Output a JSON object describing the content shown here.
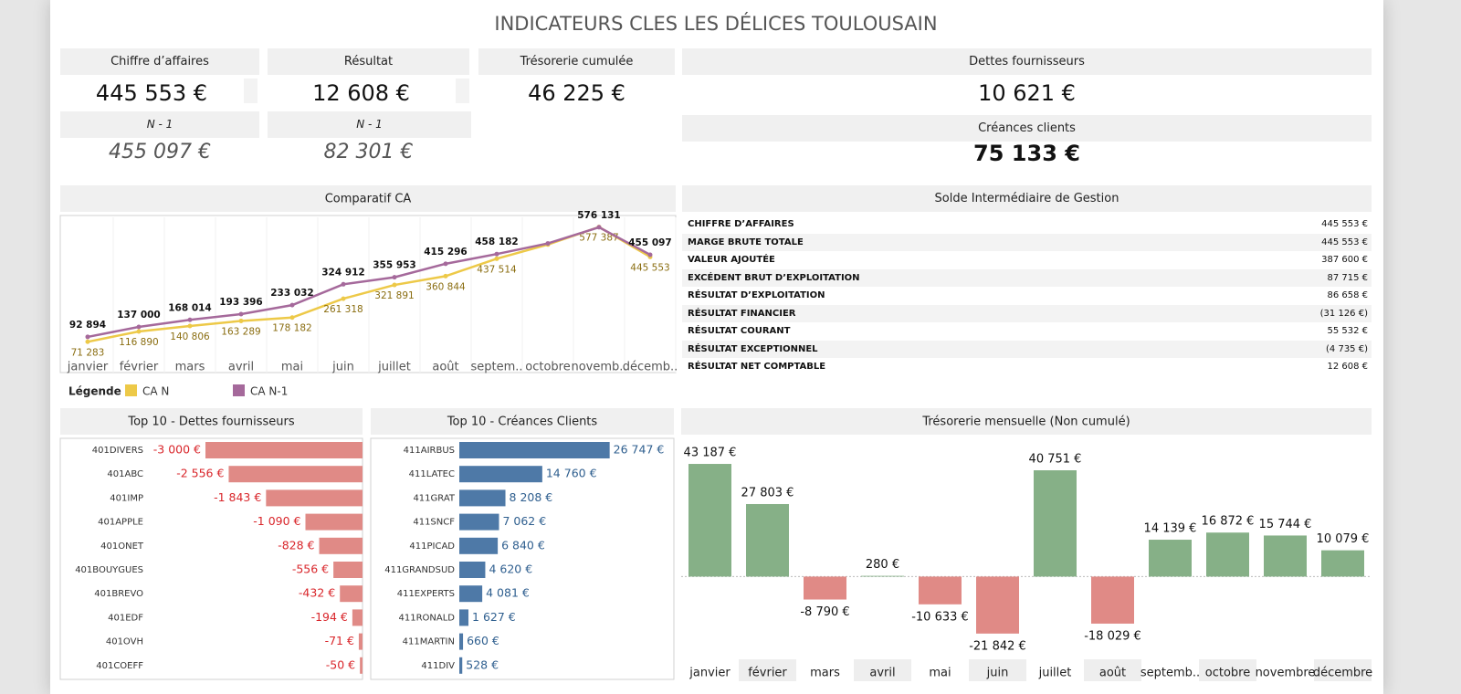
{
  "title": "INDICATEURS CLES LES DÉLICES TOULOUSAIN",
  "kpis": [
    {
      "label": "Chiffre d’affaires",
      "value": "445 553 €",
      "previous_label": "N - 1",
      "previous_value": "455 097 €"
    },
    {
      "label": "Résultat",
      "value": "12 608 €",
      "previous_label": "N - 1",
      "previous_value": "82 301 €"
    },
    {
      "label": "Trésorerie cumulée",
      "value": "46 225 €"
    },
    {
      "label": "Dettes fournisseurs",
      "value": "10 621 €"
    },
    {
      "label": "Créances clients",
      "value": "75 133 €"
    }
  ],
  "sig": {
    "title": "Solde Intermédiaire de Gestion",
    "rows": [
      [
        "CHIFFRE D’AFFAIRES",
        "445 553 €"
      ],
      [
        "MARGE BRUTE TOTALE",
        "445 553 €"
      ],
      [
        "VALEUR AJOUTÉE",
        "387 600 €"
      ],
      [
        "EXCÉDENT BRUT D’EXPLOITATION",
        "87 715 €"
      ],
      [
        "RÉSULTAT D’EXPLOITATION",
        "86 658 €"
      ],
      [
        "RÉSULTAT FINANCIER",
        "(31 126 €)"
      ],
      [
        "RÉSULTAT COURANT",
        "55 532 €"
      ],
      [
        "RÉSULTAT EXCEPTIONNEL",
        "(4 735 €)"
      ],
      [
        "RÉSULTAT NET COMPTABLE",
        "12 608 €"
      ]
    ]
  },
  "chart_data": [
    {
      "type": "line",
      "title": "Comparatif CA",
      "categories": [
        "janvier",
        "février",
        "mars",
        "avril",
        "mai",
        "juin",
        "juillet",
        "août",
        "septem..",
        "octobre",
        "novemb..",
        "décemb.."
      ],
      "ylim": [
        0,
        620000
      ],
      "legend_title": "Légende",
      "series": [
        {
          "name": "CA N",
          "color": "#edc948",
          "values": [
            71283,
            116890,
            140806,
            163289,
            178182,
            261318,
            321891,
            360844,
            437514,
            500000,
            577387,
            445553
          ],
          "value_labels": [
            "71 283",
            "116 890",
            "140 806",
            "163 289",
            "178 182",
            "261 318",
            "321 891",
            "360 844",
            "437 514",
            null,
            "577 387",
            "445 553"
          ]
        },
        {
          "name": "CA N-1",
          "color": "#a5699b",
          "values": [
            92894,
            137000,
            168014,
            193396,
            233032,
            324912,
            355953,
            415296,
            458182,
            505000,
            576131,
            455097
          ],
          "value_labels": [
            "92 894",
            "137 000",
            "168 014",
            "193 396",
            "233 032",
            "324 912",
            "355 953",
            "415 296",
            "458 182",
            null,
            "576 131",
            "455 097"
          ]
        }
      ]
    },
    {
      "type": "hbar",
      "title": "Top 10 - Dettes fournisseurs",
      "color": "#e08a86",
      "xlim": [
        -3000,
        0
      ],
      "categories": [
        "401DIVERS",
        "401ABC",
        "401IMP",
        "401APPLE",
        "401ONET",
        "401BOUYGUES",
        "401BREVO",
        "401EDF",
        "401OVH",
        "401COEFF"
      ],
      "values": [
        -3000,
        -2556,
        -1843,
        -1090,
        -828,
        -556,
        -432,
        -194,
        -71,
        -50
      ],
      "value_labels": [
        "-3 000 €",
        "-2 556 €",
        "-1 843 €",
        "-1 090 €",
        "-828 €",
        "-556 €",
        "-432 €",
        "-194 €",
        "-71 €",
        "-50 €"
      ]
    },
    {
      "type": "hbar",
      "title": "Top 10 - Créances Clients",
      "color": "#4e79a7",
      "xlim": [
        0,
        32000
      ],
      "categories": [
        "411AIRBUS",
        "411LATEC",
        "411GRAT",
        "411SNCF",
        "411PICAD",
        "411GRANDSUD",
        "411EXPERTS",
        "411RONALD",
        "411MARTIN",
        "411DIV"
      ],
      "values": [
        26747,
        14760,
        8208,
        7062,
        6840,
        4620,
        4081,
        1627,
        660,
        528
      ],
      "value_labels": [
        "26 747 €",
        "14 760 €",
        "8 208 €",
        "7 062 €",
        "6 840 €",
        "4 620 €",
        "4 081 €",
        "1 627 €",
        "660 €",
        "528 €"
      ]
    },
    {
      "type": "bar",
      "title": "Trésorerie mensuelle (Non cumulé)",
      "positive_color": "#86b087",
      "negative_color": "#e08a86",
      "ylim": [
        -31000,
        53000
      ],
      "categories": [
        "janvier",
        "février",
        "mars",
        "avril",
        "mai",
        "juin",
        "juillet",
        "août",
        "septemb..",
        "octobre",
        "novembre",
        "décembre"
      ],
      "values": [
        43187,
        27803,
        -8790,
        280,
        -10633,
        -21842,
        40751,
        -18029,
        14139,
        16872,
        15744,
        10079
      ],
      "value_labels": [
        "43 187 €",
        "27 803 €",
        "-8 790 €",
        "280 €",
        "-10 633 €",
        "-21 842 €",
        "40 751 €",
        "-18 029 €",
        "14 139 €",
        "16 872 €",
        "15 744 €",
        "10 079 €"
      ]
    }
  ]
}
